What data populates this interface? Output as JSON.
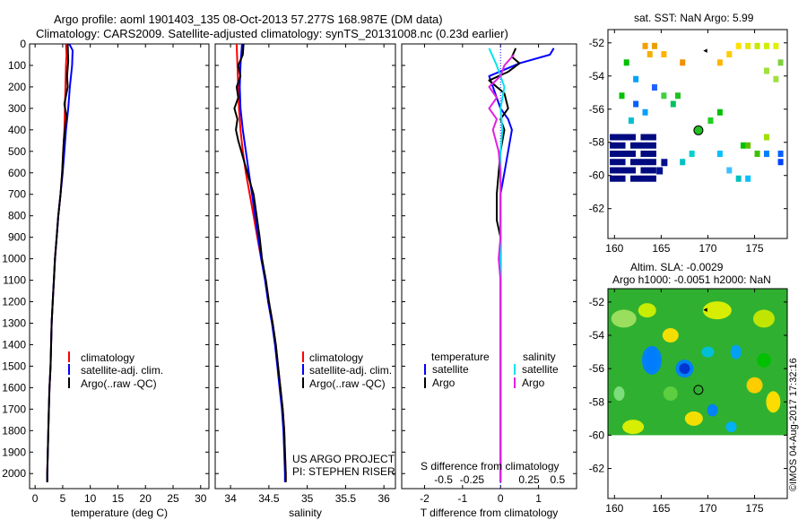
{
  "header": {
    "line1": "Argo profile: aoml 1901403_135 08-Oct-2013 57.277S 168.987E (DM data)",
    "line2": "Climatology: CARS2009. Satellite-adjusted climatology: synTS_20131008.nc (0.23d earlier)"
  },
  "colors": {
    "climatology": "#ff0000",
    "satellite": "#0000ff",
    "argo": "#000000",
    "satellite_salinity": "#00e5ee",
    "argo_salinity": "#e020e0"
  },
  "depth_ticks": [
    0,
    100,
    200,
    300,
    400,
    500,
    600,
    700,
    800,
    900,
    1000,
    1100,
    1200,
    1300,
    1400,
    1500,
    1600,
    1700,
    1800,
    1900,
    2000
  ],
  "chart_data": [
    {
      "id": "temperature",
      "type": "line",
      "xlabel": "temperature (deg C)",
      "ylabel": "",
      "xlim": [
        -1,
        31.5
      ],
      "ylim": [
        2070,
        0
      ],
      "xticks": [
        0,
        5,
        10,
        15,
        20,
        25,
        30
      ],
      "xtick_labels": [
        "0",
        "5",
        "10",
        "15",
        "20",
        "25",
        "30"
      ],
      "legend": [
        "climatology",
        "satellite-adj. clim.",
        "Argo(..raw -QC)"
      ],
      "series": [
        {
          "name": "climatology",
          "color": "#ff0000",
          "points": [
            [
              5.6,
              0
            ],
            [
              5.7,
              50
            ],
            [
              5.6,
              100
            ],
            [
              5.5,
              200
            ],
            [
              5.4,
              300
            ],
            [
              5.3,
              400
            ],
            [
              5.1,
              500
            ],
            [
              4.9,
              600
            ],
            [
              4.6,
              700
            ],
            [
              4.2,
              800
            ],
            [
              3.9,
              900
            ],
            [
              3.6,
              1000
            ],
            [
              3.4,
              1100
            ],
            [
              3.2,
              1200
            ],
            [
              3.0,
              1300
            ],
            [
              2.9,
              1400
            ],
            [
              2.8,
              1500
            ],
            [
              2.6,
              1600
            ],
            [
              2.5,
              1700
            ],
            [
              2.4,
              1800
            ],
            [
              2.3,
              1900
            ],
            [
              2.2,
              2000
            ],
            [
              2.2,
              2040
            ]
          ]
        },
        {
          "name": "satellite-adj. clim.",
          "color": "#0000ff",
          "points": [
            [
              6.2,
              0
            ],
            [
              6.8,
              30
            ],
            [
              6.7,
              100
            ],
            [
              6.3,
              200
            ],
            [
              6.0,
              300
            ],
            [
              5.6,
              400
            ],
            [
              5.3,
              500
            ],
            [
              5.0,
              600
            ],
            [
              4.6,
              700
            ],
            [
              4.2,
              800
            ],
            [
              3.9,
              900
            ],
            [
              3.6,
              1000
            ],
            [
              3.4,
              1100
            ],
            [
              3.2,
              1200
            ],
            [
              3.0,
              1300
            ],
            [
              2.9,
              1400
            ],
            [
              2.8,
              1500
            ],
            [
              2.6,
              1600
            ],
            [
              2.5,
              1700
            ],
            [
              2.4,
              1800
            ],
            [
              2.3,
              1900
            ],
            [
              2.2,
              2000
            ],
            [
              2.2,
              2040
            ]
          ]
        },
        {
          "name": "Argo(..raw -QC)",
          "color": "#000000",
          "points": [
            [
              5.9,
              0
            ],
            [
              6.0,
              80
            ],
            [
              5.8,
              150
            ],
            [
              5.9,
              200
            ],
            [
              5.3,
              280
            ],
            [
              5.7,
              340
            ],
            [
              5.4,
              400
            ],
            [
              5.2,
              450
            ],
            [
              5.1,
              500
            ],
            [
              4.9,
              600
            ],
            [
              4.6,
              700
            ],
            [
              4.2,
              800
            ],
            [
              3.9,
              900
            ],
            [
              3.6,
              1000
            ],
            [
              3.4,
              1100
            ],
            [
              3.2,
              1200
            ],
            [
              3.0,
              1300
            ],
            [
              2.9,
              1400
            ],
            [
              2.8,
              1500
            ],
            [
              2.6,
              1600
            ],
            [
              2.5,
              1700
            ],
            [
              2.4,
              1800
            ],
            [
              2.3,
              1900
            ],
            [
              2.2,
              2000
            ],
            [
              2.2,
              2040
            ]
          ]
        }
      ]
    },
    {
      "id": "salinity",
      "type": "line",
      "xlabel": "salinity",
      "ylabel": "",
      "xlim": [
        33.8,
        36.15
      ],
      "ylim": [
        2070,
        0
      ],
      "xticks": [
        34,
        34.5,
        35,
        35.5,
        36
      ],
      "xtick_labels": [
        "34",
        "34.5",
        "35",
        "35.5",
        "36"
      ],
      "legend": [
        "climatology",
        "satellite-adj. clim.",
        "Argo(..raw -QC)"
      ],
      "annotation_lines": [
        "US ARGO PROJECT",
        "PI: STEPHEN RISER"
      ],
      "series": [
        {
          "name": "climatology",
          "color": "#ff0000",
          "points": [
            [
              34.08,
              0
            ],
            [
              34.09,
              100
            ],
            [
              34.1,
              200
            ],
            [
              34.11,
              300
            ],
            [
              34.13,
              400
            ],
            [
              34.16,
              500
            ],
            [
              34.2,
              600
            ],
            [
              34.25,
              700
            ],
            [
              34.3,
              800
            ],
            [
              34.35,
              900
            ],
            [
              34.4,
              1000
            ],
            [
              34.46,
              1100
            ],
            [
              34.5,
              1200
            ],
            [
              34.55,
              1300
            ],
            [
              34.59,
              1400
            ],
            [
              34.62,
              1500
            ],
            [
              34.65,
              1600
            ],
            [
              34.68,
              1700
            ],
            [
              34.7,
              1800
            ],
            [
              34.71,
              1900
            ],
            [
              34.72,
              2000
            ],
            [
              34.72,
              2040
            ]
          ]
        },
        {
          "name": "satellite-adj. clim.",
          "color": "#0000ff",
          "points": [
            [
              34.15,
              0
            ],
            [
              34.13,
              100
            ],
            [
              34.12,
              200
            ],
            [
              34.13,
              300
            ],
            [
              34.16,
              400
            ],
            [
              34.2,
              500
            ],
            [
              34.24,
              600
            ],
            [
              34.28,
              700
            ],
            [
              34.32,
              800
            ],
            [
              34.36,
              900
            ],
            [
              34.4,
              1000
            ],
            [
              34.45,
              1100
            ],
            [
              34.49,
              1200
            ],
            [
              34.54,
              1300
            ],
            [
              34.58,
              1400
            ],
            [
              34.61,
              1500
            ],
            [
              34.64,
              1600
            ],
            [
              34.67,
              1700
            ],
            [
              34.69,
              1800
            ],
            [
              34.7,
              1900
            ],
            [
              34.71,
              2000
            ],
            [
              34.71,
              2040
            ]
          ]
        },
        {
          "name": "Argo(..raw -QC)",
          "color": "#000000",
          "points": [
            [
              34.17,
              0
            ],
            [
              34.16,
              50
            ],
            [
              34.1,
              100
            ],
            [
              34.13,
              150
            ],
            [
              34.08,
              200
            ],
            [
              34.1,
              250
            ],
            [
              34.05,
              300
            ],
            [
              34.09,
              350
            ],
            [
              34.07,
              400
            ],
            [
              34.1,
              450
            ],
            [
              34.14,
              500
            ],
            [
              34.18,
              550
            ],
            [
              34.22,
              600
            ],
            [
              34.26,
              650
            ],
            [
              34.3,
              700
            ],
            [
              34.32,
              750
            ],
            [
              34.34,
              800
            ],
            [
              34.36,
              850
            ],
            [
              34.38,
              900
            ],
            [
              34.41,
              1000
            ],
            [
              34.46,
              1100
            ],
            [
              34.5,
              1200
            ],
            [
              34.55,
              1300
            ],
            [
              34.59,
              1400
            ],
            [
              34.62,
              1500
            ],
            [
              34.65,
              1600
            ],
            [
              34.68,
              1700
            ],
            [
              34.7,
              1800
            ],
            [
              34.71,
              1900
            ],
            [
              34.72,
              2000
            ],
            [
              34.72,
              2040
            ]
          ]
        }
      ]
    },
    {
      "id": "difference",
      "type": "line",
      "xlabel": "T difference from climatology",
      "xlabel_top": "S difference from climatology",
      "ylabel": "",
      "xlim": [
        -2.6,
        2.0
      ],
      "ylim": [
        2070,
        0
      ],
      "xticks": [
        -2,
        -1,
        0,
        1
      ],
      "xtick_labels": [
        "-2",
        "-1",
        "0",
        "1"
      ],
      "sticks": [
        -1.5,
        -0.75,
        0.75,
        1.5
      ],
      "stick_labels": [
        "-0.5",
        "-0.25",
        "0.25",
        "0.5"
      ],
      "legend_headers": [
        "temperature",
        "salinity"
      ],
      "legend": [
        "satellite",
        "Argo",
        "satellite",
        "Argo"
      ],
      "series": [
        {
          "name": "satellite",
          "color": "#0000ff",
          "points": [
            [
              1.4,
              20
            ],
            [
              1.3,
              50
            ],
            [
              0.5,
              90
            ],
            [
              -0.3,
              150
            ],
            [
              -0.2,
              200
            ],
            [
              0.0,
              300
            ],
            [
              0.2,
              350
            ],
            [
              0.3,
              400
            ],
            [
              0.2,
              500
            ],
            [
              0.1,
              600
            ],
            [
              0.0,
              700
            ],
            [
              0.0,
              900
            ],
            [
              0.0,
              1200
            ],
            [
              0.0,
              1600
            ],
            [
              0.0,
              2040
            ]
          ]
        },
        {
          "name": "Argo",
          "color": "#000000",
          "points": [
            [
              0.4,
              20
            ],
            [
              0.3,
              60
            ],
            [
              0.5,
              90
            ],
            [
              0.2,
              130
            ],
            [
              -0.3,
              170
            ],
            [
              0.1,
              230
            ],
            [
              0.2,
              300
            ],
            [
              0.0,
              350
            ],
            [
              0.1,
              400
            ],
            [
              0.0,
              500
            ],
            [
              -0.1,
              700
            ],
            [
              -0.1,
              760
            ],
            [
              -0.1,
              820
            ],
            [
              0.0,
              900
            ],
            [
              0.0,
              1200
            ],
            [
              0.0,
              1600
            ],
            [
              0.0,
              2040
            ]
          ]
        },
        {
          "name": "satellite",
          "color": "#00e5ee",
          "points": [
            [
              -0.3,
              20
            ],
            [
              -0.1,
              100
            ],
            [
              0.1,
              200
            ],
            [
              0.0,
              300
            ],
            [
              0.05,
              400
            ],
            [
              0.0,
              500
            ],
            [
              0.0,
              800
            ],
            [
              0.0,
              1200
            ],
            [
              0.0,
              1600
            ],
            [
              0.0,
              2040
            ]
          ]
        },
        {
          "name": "Argo",
          "color": "#e020e0",
          "points": [
            [
              0.35,
              50
            ],
            [
              0.1,
              100
            ],
            [
              0.0,
              150
            ],
            [
              -0.3,
              200
            ],
            [
              -0.1,
              250
            ],
            [
              -0.3,
              300
            ],
            [
              -0.1,
              350
            ],
            [
              -0.2,
              400
            ],
            [
              -0.05,
              500
            ],
            [
              0.0,
              600
            ],
            [
              0.0,
              900
            ],
            [
              -0.05,
              1000
            ],
            [
              0.0,
              1100
            ],
            [
              0.0,
              1600
            ],
            [
              0.0,
              2040
            ]
          ]
        }
      ]
    }
  ],
  "maps": [
    {
      "id": "sst-map",
      "title": "sat. SST: NaN Argo: 5.99",
      "type": "heatmap",
      "xlim": [
        159.3,
        178.5
      ],
      "ylim": [
        -63.8,
        -51.2
      ],
      "xticks": [
        160,
        165,
        170,
        175
      ],
      "yticks": [
        -52,
        -54,
        -56,
        -58,
        -60,
        -62
      ],
      "argo_position": [
        168.987,
        -57.277
      ]
    },
    {
      "id": "sla-map",
      "title_lines": [
        "Altim. SLA: -0.0029",
        "Argo h1000: -0.0051 h2000: NaN"
      ],
      "type": "heatmap",
      "xlim": [
        159.3,
        178.5
      ],
      "ylim": [
        -63.8,
        -51.2
      ],
      "xticks": [
        160,
        165,
        170,
        175
      ],
      "yticks": [
        -52,
        -54,
        -56,
        -58,
        -60,
        -62
      ],
      "argo_position": [
        168.987,
        -57.277
      ]
    }
  ],
  "credit": "©IMOS 04-Aug-2017 17:32:16"
}
